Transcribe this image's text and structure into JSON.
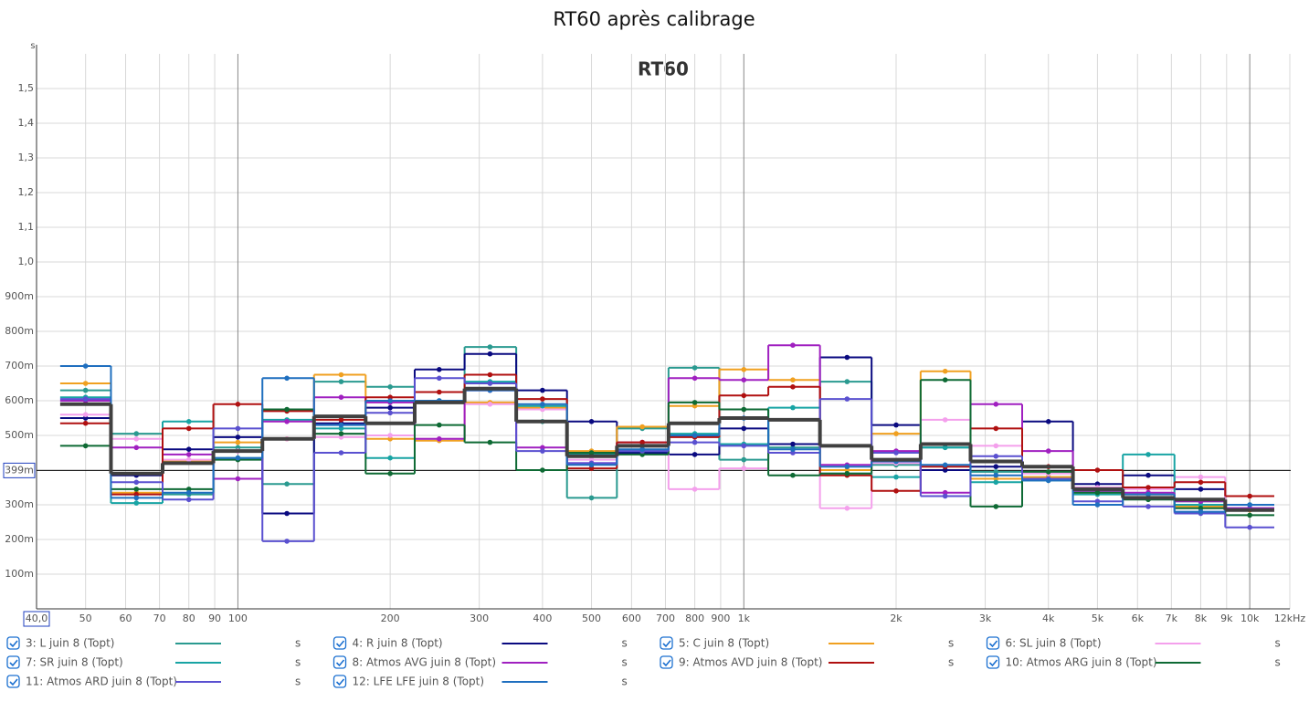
{
  "chart_data": {
    "type": "step",
    "title": "RT60 après calibrage",
    "inner_title": "RT60",
    "y_label": "s",
    "x_log": true,
    "grid": true,
    "xlim": [
      40,
      12000
    ],
    "ylim": [
      0,
      1.6
    ],
    "xticks": [
      {
        "value": 40,
        "label": "40,0"
      },
      50,
      60,
      70,
      80,
      90,
      100,
      200,
      300,
      400,
      500,
      600,
      700,
      800,
      900,
      {
        "value": 1000,
        "label": "1k"
      },
      {
        "value": 2000,
        "label": "2k"
      },
      {
        "value": 3000,
        "label": "3k"
      },
      {
        "value": 4000,
        "label": "4k"
      },
      {
        "value": 5000,
        "label": "5k"
      },
      {
        "value": 6000,
        "label": "6k"
      },
      {
        "value": 7000,
        "label": "7k"
      },
      {
        "value": 8000,
        "label": "8k"
      },
      {
        "value": 9000,
        "label": "9k"
      },
      {
        "value": 10000,
        "label": "10k"
      },
      {
        "value": 12000,
        "label": "12kHz"
      }
    ],
    "yticks": [
      {
        "value": 0.1,
        "label": "100m"
      },
      {
        "value": 0.2,
        "label": "200m"
      },
      {
        "value": 0.3,
        "label": "300m"
      },
      {
        "value": 0.4,
        "label": "400m"
      },
      {
        "value": 0.5,
        "label": "500m"
      },
      {
        "value": 0.6,
        "label": "600m"
      },
      {
        "value": 0.7,
        "label": "700m"
      },
      {
        "value": 0.8,
        "label": "800m"
      },
      {
        "value": 0.9,
        "label": "900m"
      },
      {
        "value": 1.0,
        "label": "1,0"
      },
      {
        "value": 1.1,
        "label": "1,1"
      },
      {
        "value": 1.2,
        "label": "1,2"
      },
      {
        "value": 1.3,
        "label": "1,3"
      },
      {
        "value": 1.4,
        "label": "1,4"
      },
      {
        "value": 1.5,
        "label": "1,5"
      }
    ],
    "cursor": {
      "value": 0.399,
      "label": "399m"
    },
    "x": [
      50,
      63,
      80,
      100,
      125,
      160,
      200,
      250,
      315,
      400,
      500,
      630,
      800,
      1000,
      1250,
      1600,
      2000,
      2500,
      3150,
      4000,
      5000,
      6300,
      8000,
      10000
    ],
    "series": [
      {
        "name": "3: L juin 8 (Topt)",
        "unit": "s",
        "color": "#2a9a90",
        "values": [
          0.63,
          0.505,
          0.33,
          0.465,
          0.36,
          0.655,
          0.64,
          0.6,
          0.755,
          0.54,
          0.32,
          0.52,
          0.695,
          0.43,
          0.465,
          0.655,
          0.415,
          0.465,
          0.395,
          0.38,
          0.34,
          0.32,
          0.31,
          0.29
        ]
      },
      {
        "name": "4: R juin 8 (Topt)",
        "unit": "s",
        "color": "#0a0a80",
        "values": [
          0.55,
          0.385,
          0.46,
          0.495,
          0.275,
          0.535,
          0.58,
          0.69,
          0.735,
          0.63,
          0.54,
          0.45,
          0.445,
          0.52,
          0.475,
          0.725,
          0.53,
          0.4,
          0.41,
          0.54,
          0.36,
          0.385,
          0.345,
          0.29
        ]
      },
      {
        "name": "5: C juin 8 (Topt)",
        "unit": "s",
        "color": "#f0a020",
        "values": [
          0.65,
          0.335,
          0.425,
          0.48,
          0.49,
          0.675,
          0.49,
          0.485,
          0.595,
          0.58,
          0.455,
          0.525,
          0.585,
          0.69,
          0.66,
          0.4,
          0.505,
          0.685,
          0.375,
          0.38,
          0.345,
          0.33,
          0.295,
          0.285
        ]
      },
      {
        "name": "6: SL juin 8 (Topt)",
        "unit": "s",
        "color": "#f4a0ec",
        "values": [
          0.56,
          0.49,
          0.43,
          0.455,
          0.49,
          0.495,
          0.5,
          0.49,
          0.59,
          0.575,
          0.43,
          0.47,
          0.345,
          0.405,
          0.45,
          0.29,
          0.42,
          0.545,
          0.47,
          0.39,
          0.35,
          0.345,
          0.38,
          0.29
        ]
      },
      {
        "name": "7: SR juin 8 (Topt)",
        "unit": "s",
        "color": "#18a4a4",
        "values": [
          0.61,
          0.305,
          0.54,
          0.435,
          0.545,
          0.52,
          0.435,
          0.6,
          0.655,
          0.585,
          0.445,
          0.455,
          0.505,
          0.475,
          0.58,
          0.39,
          0.38,
          0.465,
          0.365,
          0.37,
          0.33,
          0.445,
          0.3,
          0.3
        ]
      },
      {
        "name": "8: Atmos AVG juin 8 (Topt)",
        "unit": "s",
        "color": "#a020c0",
        "values": [
          0.6,
          0.465,
          0.445,
          0.375,
          0.54,
          0.61,
          0.595,
          0.49,
          0.63,
          0.465,
          0.42,
          0.48,
          0.665,
          0.66,
          0.76,
          0.415,
          0.455,
          0.335,
          0.59,
          0.455,
          0.34,
          0.335,
          0.31,
          0.29
        ]
      },
      {
        "name": "9: Atmos AVD juin 8 (Topt)",
        "unit": "s",
        "color": "#b01010",
        "values": [
          0.535,
          0.33,
          0.52,
          0.59,
          0.57,
          0.545,
          0.61,
          0.625,
          0.675,
          0.605,
          0.405,
          0.48,
          0.495,
          0.615,
          0.64,
          0.385,
          0.34,
          0.41,
          0.52,
          0.41,
          0.4,
          0.35,
          0.365,
          0.325
        ]
      },
      {
        "name": "10: Atmos ARG juin 8 (Topt)",
        "unit": "s",
        "color": "#0e6a34",
        "values": [
          0.47,
          0.345,
          0.345,
          0.43,
          0.575,
          0.505,
          0.39,
          0.53,
          0.48,
          0.4,
          0.45,
          0.445,
          0.595,
          0.575,
          0.385,
          0.39,
          0.425,
          0.66,
          0.295,
          0.395,
          0.335,
          0.315,
          0.29,
          0.27
        ]
      },
      {
        "name": "11: Atmos ARD juin 8 (Topt)",
        "unit": "s",
        "color": "#5a50d0",
        "values": [
          0.605,
          0.365,
          0.315,
          0.52,
          0.195,
          0.45,
          0.565,
          0.665,
          0.65,
          0.455,
          0.42,
          0.455,
          0.48,
          0.47,
          0.45,
          0.605,
          0.45,
          0.325,
          0.44,
          0.375,
          0.31,
          0.295,
          0.275,
          0.235
        ]
      },
      {
        "name": "12: LFE LFE juin 8 (Topt)",
        "unit": "s",
        "color": "#1f6fbf",
        "values": [
          0.7,
          0.32,
          0.335,
          0.435,
          0.665,
          0.53,
          0.6,
          0.6,
          0.63,
          0.59,
          0.415,
          0.46,
          0.5,
          0.55,
          0.46,
          0.41,
          0.425,
          0.415,
          0.385,
          0.37,
          0.3,
          0.33,
          0.28,
          0.3
        ]
      },
      {
        "color": "#404040",
        "values": [
          0.59,
          0.39,
          0.42,
          0.455,
          0.49,
          0.555,
          0.535,
          0.595,
          0.635,
          0.54,
          0.44,
          0.47,
          0.535,
          0.55,
          0.545,
          0.47,
          0.43,
          0.475,
          0.425,
          0.41,
          0.345,
          0.32,
          0.315,
          0.285
        ]
      }
    ]
  }
}
